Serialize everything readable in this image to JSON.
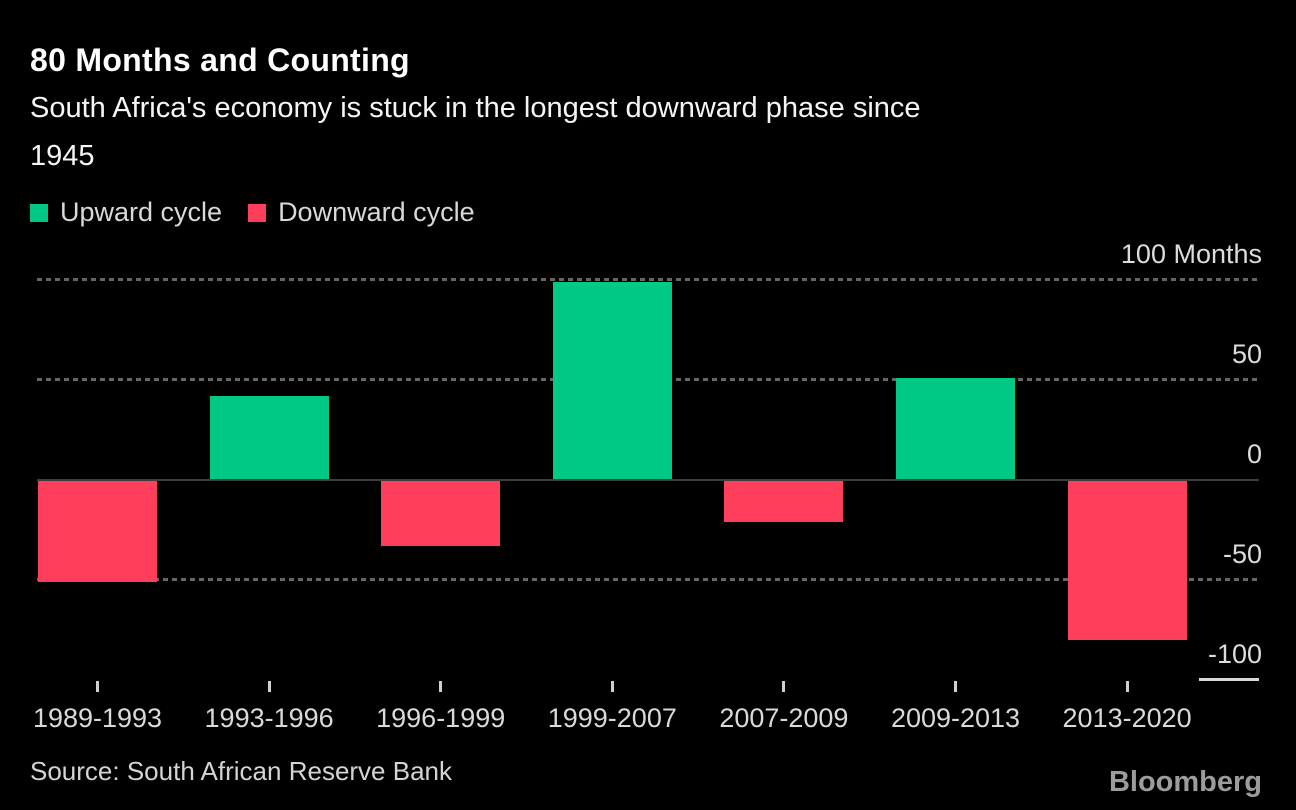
{
  "header": {
    "title": "80 Months and Counting",
    "subtitle_lines": [
      "South Africa's economy is stuck in the longest downward phase since",
      "1945"
    ]
  },
  "legend": [
    {
      "label": "Upward cycle",
      "color": "#00c986"
    },
    {
      "label": "Downward cycle",
      "color": "#ff3e5c"
    }
  ],
  "footer": {
    "source": "Source: South African Reserve Bank",
    "brand": "Bloomberg"
  },
  "colors": {
    "background": "#000000",
    "title": "#ffffff",
    "subtitle": "#f5f5f5",
    "axis_text": "#d9d9d9",
    "gridline": "#666666",
    "zero_line": "#3e3e3e",
    "axis_edge_line": "#d9d9d9",
    "upward_cycle": "#00c986",
    "downward_cycle": "#ff3e5c",
    "source_text": "#d4d4d4",
    "brand_text": "#9c9c9c"
  },
  "chart_data": {
    "type": "bar",
    "title": "80 Months and Counting",
    "subtitle": "South Africa's economy is stuck in the longest downward phase since 1945",
    "categories": [
      "1989-1993",
      "1993-1996",
      "1996-1999",
      "1999-2007",
      "2007-2009",
      "2009-2013",
      "2013-2020"
    ],
    "values": [
      -51,
      42,
      -33,
      99,
      -21,
      51,
      -80
    ],
    "value_unit": "Months",
    "positive_label": "Upward cycle",
    "negative_label": "Downward cycle",
    "positive_color": "#00c986",
    "negative_color": "#ff3e5c",
    "ylim": [
      -100,
      100
    ],
    "yticks": [
      {
        "value": 100,
        "label": "100 Months",
        "style": "dotted"
      },
      {
        "value": 50,
        "label": "50",
        "style": "dotted"
      },
      {
        "value": 0,
        "label": "0",
        "style": "solid"
      },
      {
        "value": -50,
        "label": "-50",
        "style": "dotted"
      },
      {
        "value": -100,
        "label": "-100",
        "style": "edge"
      }
    ],
    "grid": "horizontal dotted",
    "legend_position": "top-left",
    "source": "South African Reserve Bank"
  }
}
